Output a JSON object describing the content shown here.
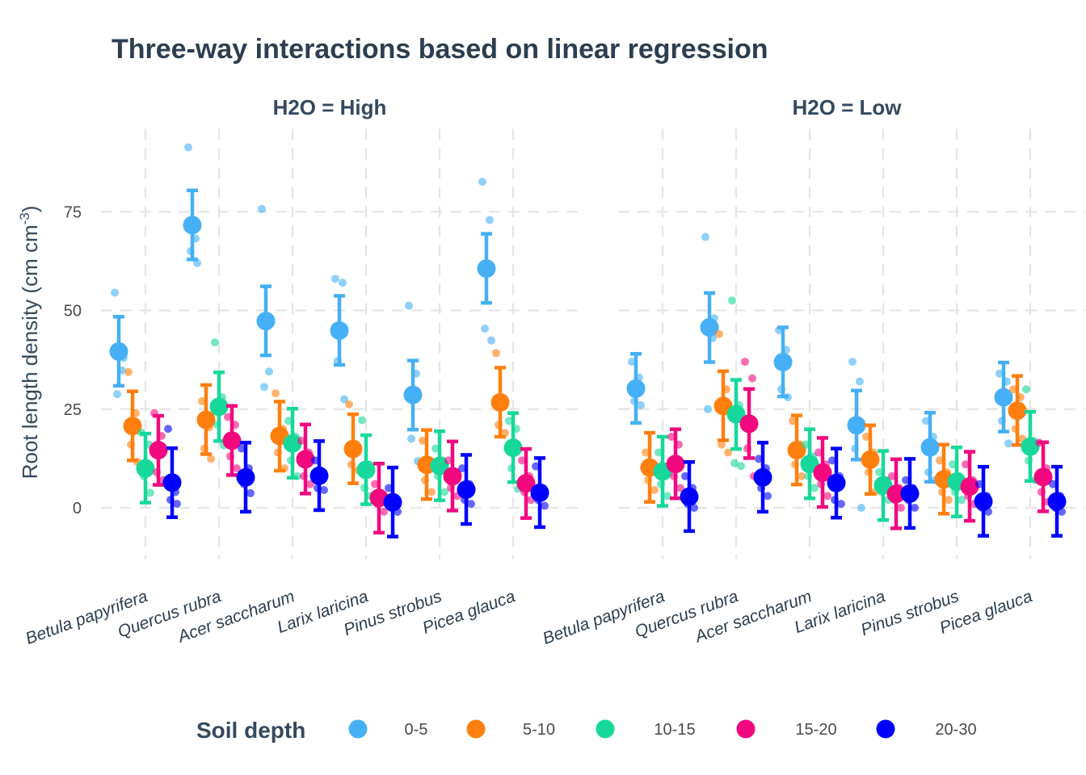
{
  "chart_data": {
    "type": "scatter",
    "title": "Three-way interactions based on linear regression",
    "ylabel_main": "Root length density (cm cm",
    "ylabel_sup": "-3",
    "ylabel_close": ")",
    "ylim": [
      -13,
      96
    ],
    "yticks": [
      0,
      25,
      50,
      75
    ],
    "categories": [
      "Betula papyrifera",
      "Quercus rubra",
      "Acer saccharum",
      "Larix laricina",
      "Pinus strobus",
      "Picea glauca"
    ],
    "legend": {
      "title": "Soil depth",
      "position": "bottom",
      "items": [
        {
          "label": "0-5",
          "color": "#45b0f5"
        },
        {
          "label": "5-10",
          "color": "#ff7f0e"
        },
        {
          "label": "10-15",
          "color": "#17d89b"
        },
        {
          "label": "15-20",
          "color": "#f2087f"
        },
        {
          "label": "20-30",
          "color": "#0000ff"
        }
      ]
    },
    "panels": [
      {
        "label": "H2O = High",
        "series": [
          {
            "name": "0-5",
            "values": [
              {
                "mean": 39.6,
                "lo": 30.9,
                "hi": 48.4,
                "raw": [
                  54.5,
                  34.8,
                  28.8,
                  38.0
                ]
              },
              {
                "mean": 71.6,
                "lo": 62.9,
                "hi": 80.4,
                "raw": [
                  91.3,
                  68.2,
                  65.0,
                  62.0
                ]
              },
              {
                "mean": 47.3,
                "lo": 38.6,
                "hi": 56.1,
                "raw": [
                  75.7,
                  34.5,
                  30.6,
                  48.0
                ]
              },
              {
                "mean": 44.9,
                "lo": 36.2,
                "hi": 53.7,
                "raw": [
                  58.0,
                  57.0,
                  37.2,
                  27.5
                ]
              },
              {
                "mean": 28.6,
                "lo": 19.8,
                "hi": 37.3,
                "raw": [
                  51.2,
                  34.0,
                  17.5,
                  11.8
                ]
              },
              {
                "mean": 60.6,
                "lo": 51.9,
                "hi": 69.4,
                "raw": [
                  82.6,
                  72.9,
                  45.4,
                  42.4
                ]
              }
            ]
          },
          {
            "name": "5-10",
            "values": [
              {
                "mean": 20.7,
                "lo": 12.0,
                "hi": 29.5,
                "raw": [
                  34.4,
                  24.0,
                  16.0,
                  11.6
                ]
              },
              {
                "mean": 22.3,
                "lo": 13.6,
                "hi": 31.1,
                "raw": [
                  27.0,
                  20.4,
                  15.0,
                  12.4
                ]
              },
              {
                "mean": 18.2,
                "lo": 9.4,
                "hi": 26.9,
                "raw": [
                  29.0,
                  20.0,
                  14.0,
                  10.0
                ]
              },
              {
                "mean": 14.9,
                "lo": 6.2,
                "hi": 23.7,
                "raw": [
                  26.2,
                  16.0,
                  11.0,
                  9.5
                ]
              },
              {
                "mean": 10.9,
                "lo": 2.2,
                "hi": 19.7,
                "raw": [
                  17.0,
                  12.0,
                  7.0,
                  4.0
                ]
              },
              {
                "mean": 26.7,
                "lo": 18.0,
                "hi": 35.5,
                "raw": [
                  39.2,
                  27.0,
                  21.0,
                  19.0
                ]
              }
            ]
          },
          {
            "name": "10-15",
            "values": [
              {
                "mean": 10.0,
                "lo": 1.3,
                "hi": 18.8,
                "raw": [
                  19.0,
                  16.0,
                  8.0,
                  3.8
                ]
              },
              {
                "mean": 25.6,
                "lo": 16.9,
                "hi": 34.3,
                "raw": [
                  41.9,
                  28.0,
                  21.0,
                  15.8
                ]
              },
              {
                "mean": 16.3,
                "lo": 7.6,
                "hi": 25.1,
                "raw": [
                  22.0,
                  18.0,
                  12.0,
                  8.0
                ]
              },
              {
                "mean": 9.6,
                "lo": 0.9,
                "hi": 18.4,
                "raw": [
                  22.2,
                  11.0,
                  5.0,
                  3.0
                ]
              },
              {
                "mean": 10.6,
                "lo": 1.9,
                "hi": 19.4,
                "raw": [
                  15.0,
                  12.0,
                  8.0,
                  4.0
                ]
              },
              {
                "mean": 15.2,
                "lo": 6.5,
                "hi": 24.0,
                "raw": [
                  22.0,
                  20.0,
                  10.0,
                  4.8
                ]
              }
            ]
          },
          {
            "name": "15-20",
            "values": [
              {
                "mean": 14.6,
                "lo": 5.8,
                "hi": 23.3,
                "raw": [
                  24.0,
                  18.2,
                  9.0,
                  7.0
                ]
              },
              {
                "mean": 17.0,
                "lo": 8.3,
                "hi": 25.8,
                "raw": [
                  23.0,
                  21.0,
                  13.0,
                  10.0
                ]
              },
              {
                "mean": 12.3,
                "lo": 3.6,
                "hi": 21.1,
                "raw": [
                  17.0,
                  14.0,
                  8.0,
                  6.0
                ]
              },
              {
                "mean": 2.5,
                "lo": -6.3,
                "hi": 11.2,
                "raw": [
                  6.0,
                  3.0,
                  1.0,
                  -1.0
                ]
              },
              {
                "mean": 8.0,
                "lo": -0.7,
                "hi": 16.8,
                "raw": [
                  12.0,
                  9.0,
                  5.0,
                  3.0
                ]
              },
              {
                "mean": 6.2,
                "lo": -2.6,
                "hi": 14.9,
                "raw": [
                  12.0,
                  8.0,
                  4.0,
                  2.0
                ]
              }
            ]
          },
          {
            "name": "20-30",
            "values": [
              {
                "mean": 6.4,
                "lo": -2.4,
                "hi": 15.1,
                "raw": [
                  20.0,
                  4.0,
                  2.0,
                  1.0
                ]
              },
              {
                "mean": 7.7,
                "lo": -1.0,
                "hi": 16.5,
                "raw": [
                  15.0,
                  10.0,
                  6.0,
                  3.7
                ]
              },
              {
                "mean": 8.1,
                "lo": -0.6,
                "hi": 16.9,
                "raw": [
                  12.0,
                  9.0,
                  5.0,
                  4.5
                ]
              },
              {
                "mean": 1.4,
                "lo": -7.3,
                "hi": 10.2,
                "raw": [
                  5.0,
                  2.0,
                  0.0,
                  -1.0
                ]
              },
              {
                "mean": 4.6,
                "lo": -4.1,
                "hi": 13.4,
                "raw": [
                  10.0,
                  6.0,
                  2.0,
                  1.0
                ]
              },
              {
                "mean": 3.8,
                "lo": -4.9,
                "hi": 12.6,
                "raw": [
                  10.5,
                  5.0,
                  2.0,
                  0.5
                ]
              }
            ]
          }
        ]
      },
      {
        "label": "H2O = Low",
        "series": [
          {
            "name": "0-5",
            "values": [
              {
                "mean": 30.2,
                "lo": 21.5,
                "hi": 39.0,
                "raw": [
                  37.0,
                  33.0,
                  27.0,
                  26.0
                ]
              },
              {
                "mean": 45.7,
                "lo": 36.9,
                "hi": 54.4,
                "raw": [
                  68.6,
                  43.0,
                  25.0,
                  48.0
                ]
              },
              {
                "mean": 36.9,
                "lo": 28.2,
                "hi": 45.7,
                "raw": [
                  45.0,
                  40.0,
                  30.0,
                  28.0
                ]
              },
              {
                "mean": 20.9,
                "lo": 12.2,
                "hi": 29.7,
                "raw": [
                  37.0,
                  32.0,
                  15.0,
                  0.0
                ]
              },
              {
                "mean": 15.3,
                "lo": 6.6,
                "hi": 24.1,
                "raw": [
                  22.0,
                  18.0,
                  9.0,
                  7.0
                ]
              },
              {
                "mean": 28.0,
                "lo": 19.3,
                "hi": 36.8,
                "raw": [
                  34.0,
                  32.0,
                  22.0,
                  16.3
                ]
              }
            ]
          },
          {
            "name": "5-10",
            "values": [
              {
                "mean": 10.2,
                "lo": 1.5,
                "hi": 19.0,
                "raw": [
                  14.0,
                  11.0,
                  7.0,
                  4.5
                ]
              },
              {
                "mean": 25.8,
                "lo": 17.1,
                "hi": 34.6,
                "raw": [
                  44.0,
                  30.0,
                  16.0,
                  14.0
                ]
              },
              {
                "mean": 14.6,
                "lo": 5.9,
                "hi": 23.4,
                "raw": [
                  22.0,
                  16.0,
                  11.0,
                  8.0
                ]
              },
              {
                "mean": 12.2,
                "lo": 3.5,
                "hi": 20.9,
                "raw": [
                  18.0,
                  14.0,
                  9.0,
                  4.0
                ]
              },
              {
                "mean": 7.2,
                "lo": -1.5,
                "hi": 16.0,
                "raw": [
                  12.0,
                  9.0,
                  4.0,
                  2.0
                ]
              },
              {
                "mean": 24.6,
                "lo": 15.9,
                "hi": 33.4,
                "raw": [
                  30.0,
                  28.0,
                  20.0,
                  17.5
                ]
              }
            ]
          },
          {
            "name": "10-15",
            "values": [
              {
                "mean": 9.2,
                "lo": 0.5,
                "hi": 18.0,
                "raw": [
                  14.0,
                  10.0,
                  6.0,
                  3.0
                ]
              },
              {
                "mean": 23.7,
                "lo": 14.9,
                "hi": 32.4,
                "raw": [
                  52.5,
                  26.0,
                  11.3,
                  10.6
                ]
              },
              {
                "mean": 11.1,
                "lo": 2.4,
                "hi": 19.9,
                "raw": [
                  16.0,
                  13.0,
                  8.0,
                  5.0
                ]
              },
              {
                "mean": 5.7,
                "lo": -3.1,
                "hi": 14.4,
                "raw": [
                  9.0,
                  7.0,
                  4.0,
                  2.0
                ]
              },
              {
                "mean": 6.6,
                "lo": -2.2,
                "hi": 15.3,
                "raw": [
                  11.0,
                  8.0,
                  4.0,
                  2.0
                ]
              },
              {
                "mean": 15.5,
                "lo": 6.8,
                "hi": 24.3,
                "raw": [
                  30.0,
                  17.0,
                  12.0,
                  7.0
                ]
              }
            ]
          },
          {
            "name": "15-20",
            "values": [
              {
                "mean": 11.1,
                "lo": 2.4,
                "hi": 19.9,
                "raw": [
                  18.0,
                  16.0,
                  8.0,
                  5.0
                ]
              },
              {
                "mean": 21.3,
                "lo": 12.6,
                "hi": 30.1,
                "raw": [
                  37.0,
                  32.8,
                  15.0,
                  8.0
                ]
              },
              {
                "mean": 8.9,
                "lo": 0.2,
                "hi": 17.7,
                "raw": [
                  14.0,
                  11.0,
                  6.0,
                  3.0
                ]
              },
              {
                "mean": 3.5,
                "lo": -5.2,
                "hi": 12.3,
                "raw": [
                  8.0,
                  5.0,
                  2.0,
                  0.0
                ]
              },
              {
                "mean": 5.4,
                "lo": -3.3,
                "hi": 14.2,
                "raw": [
                  11.0,
                  7.0,
                  3.0,
                  1.0
                ]
              },
              {
                "mean": 7.8,
                "lo": -0.9,
                "hi": 16.6,
                "raw": [
                  16.5,
                  10.0,
                  4.0,
                  1.5
                ]
              }
            ]
          },
          {
            "name": "20-30",
            "values": [
              {
                "mean": 2.8,
                "lo": -5.9,
                "hi": 11.6,
                "raw": [
                  8.0,
                  5.0,
                  1.0,
                  0.0
                ]
              },
              {
                "mean": 7.7,
                "lo": -1.0,
                "hi": 16.5,
                "raw": [
                  12.4,
                  10.0,
                  5.0,
                  3.0
                ]
              },
              {
                "mean": 6.3,
                "lo": -2.5,
                "hi": 15.0,
                "raw": [
                  12.0,
                  8.0,
                  2.0,
                  1.0
                ]
              },
              {
                "mean": 3.6,
                "lo": -5.1,
                "hi": 12.4,
                "raw": [
                  7.0,
                  5.0,
                  2.0,
                  0.0
                ]
              },
              {
                "mean": 1.6,
                "lo": -7.1,
                "hi": 10.4,
                "raw": [
                  6.0,
                  3.0,
                  0.0,
                  -1.0
                ]
              },
              {
                "mean": 1.6,
                "lo": -7.1,
                "hi": 10.4,
                "raw": [
                  6.0,
                  3.0,
                  0.0,
                  -1.0
                ]
              }
            ]
          }
        ]
      }
    ]
  }
}
